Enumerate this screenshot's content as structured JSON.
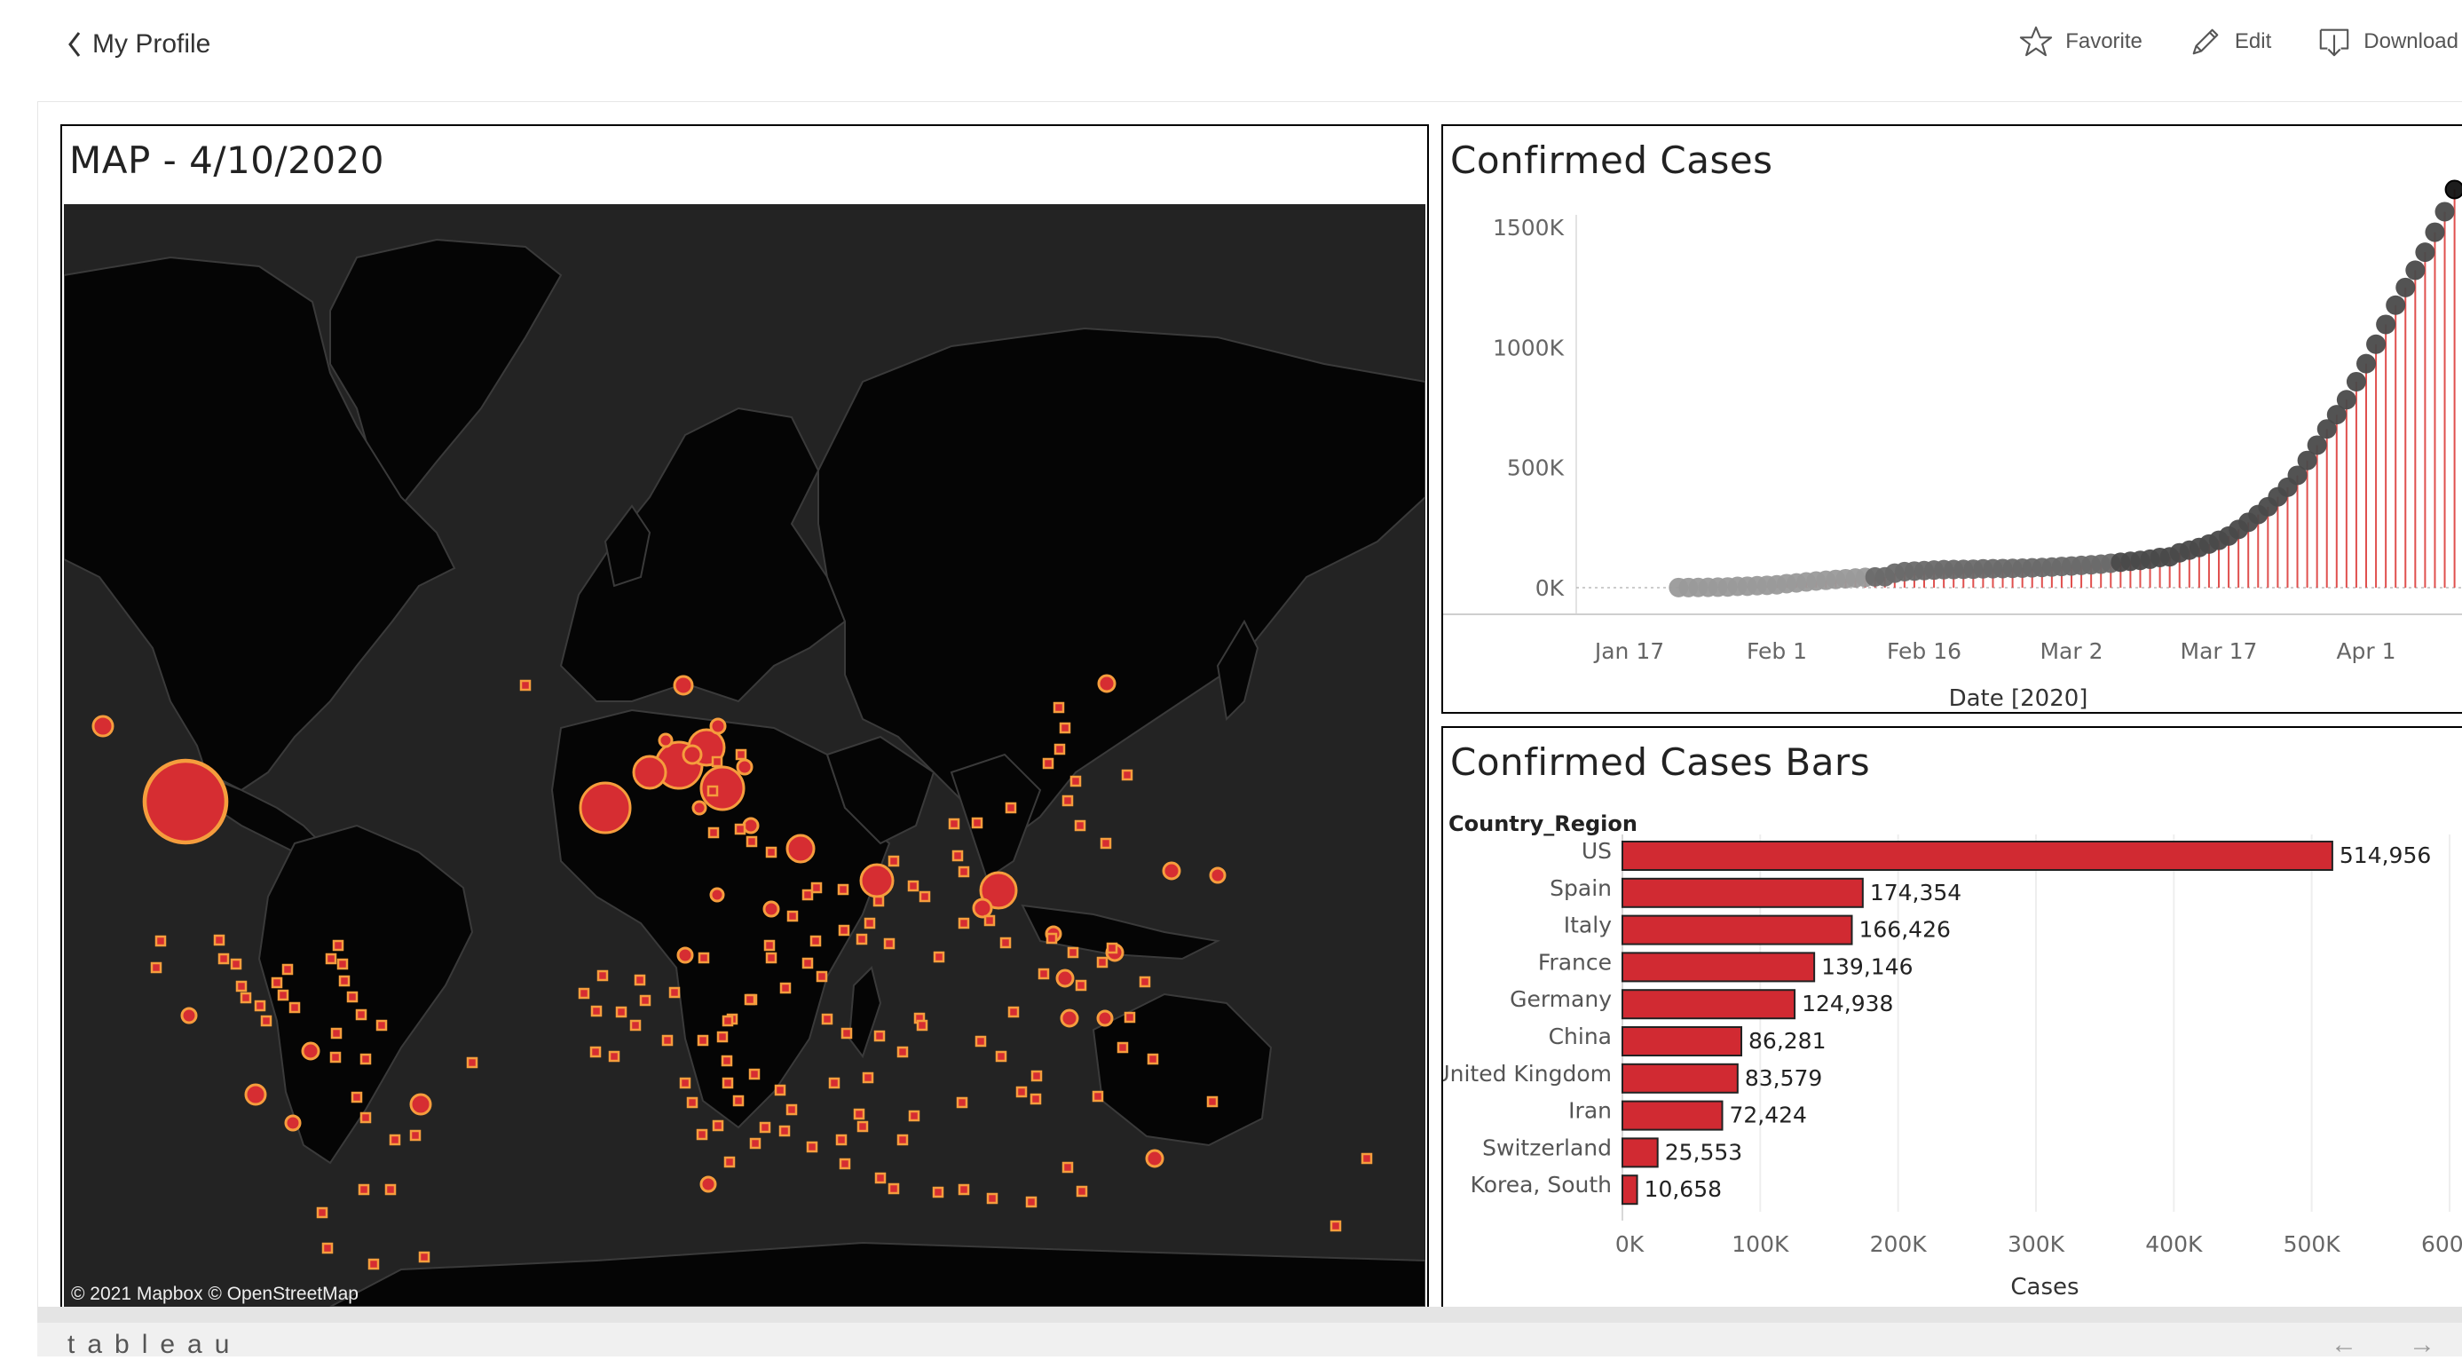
{
  "topbar": {
    "back_label": "My Profile",
    "actions": [
      {
        "icon": "star-icon",
        "label": "Favorite"
      },
      {
        "icon": "pencil-icon",
        "label": "Edit"
      },
      {
        "icon": "download-icon",
        "label": "Download"
      }
    ]
  },
  "map_panel": {
    "title": "MAP - 4/10/2020",
    "attribution": "© 2021 Mapbox  © OpenStreetMap",
    "land_color": "#000000",
    "ocean_color": "#232323",
    "marker_color": "#d62d32",
    "marker_outline": "#f59d3d"
  },
  "line_panel": {
    "title": "Confirmed Cases"
  },
  "bar_panel": {
    "title": "Confirmed Cases Bars"
  },
  "chart_data": [
    {
      "type": "scatter",
      "title": "Confirmed Cases",
      "xlabel": "Date [2020]",
      "ylabel": "",
      "x_ticks": [
        "Jan 17",
        "Feb 1",
        "Feb 16",
        "Mar 2",
        "Mar 17",
        "Apr 1"
      ],
      "y_ticks": [
        "0K",
        "500K",
        "1000K",
        "1500K"
      ],
      "ylim": [
        0,
        1750000
      ],
      "x_range": [
        "2020-01-22",
        "2020-04-10"
      ],
      "point_color": "#3a3a3a",
      "stem_color": "#e0504e",
      "series": [
        {
          "x_start": "2020-01-22",
          "x_step_days": 1,
          "values": [
            555,
            654,
            941,
            1434,
            2118,
            2927,
            5578,
            6166,
            8234,
            9927,
            12038,
            16787,
            19881,
            23892,
            27635,
            30794,
            34391,
            37120,
            40150,
            42762,
            44802,
            45221,
            60368,
            66885,
            69030,
            71224,
            73258,
            75136,
            75639,
            76197,
            76819,
            78572,
            78958,
            79561,
            80406,
            81388,
            82746,
            84112,
            86011,
            88369,
            90306,
            92840,
            95120,
            98016,
            101800,
            105836,
            109835,
            113591,
            118620,
            125875,
            128352,
            145205,
            156101,
            167454,
            181574,
            197102,
            214821,
            242570,
            272208,
            304507,
            336953,
            378231,
            418041,
            467653,
            529591,
            593291,
            660706,
            720117,
            782365,
            857487,
            932605,
            1013466,
            1095917,
            1176060,
            1249754,
            1321481,
            1396476,
            1479804,
            1565278,
            1657526
          ]
        }
      ]
    },
    {
      "type": "bar",
      "title": "Confirmed Cases Bars",
      "category_header": "Country_Region",
      "xlabel": "Cases",
      "x_ticks": [
        "0K",
        "100K",
        "200K",
        "300K",
        "400K",
        "500K",
        "600K"
      ],
      "xlim": [
        0,
        600000
      ],
      "bar_color": "#d12a32",
      "categories": [
        "US",
        "Spain",
        "Italy",
        "France",
        "Germany",
        "China",
        "United Kingdom",
        "Iran",
        "Switzerland",
        "Korea, South"
      ],
      "values": [
        514956,
        174354,
        166426,
        139146,
        124938,
        86281,
        83579,
        72424,
        25553,
        10658
      ],
      "value_labels": [
        "514,956",
        "174,354",
        "166,426",
        "139,146",
        "124,938",
        "86,281",
        "83,579",
        "72,424",
        "25,553",
        "10,658"
      ]
    }
  ],
  "footer": {
    "logo": "tableau",
    "prev_icon": "arrow-left-icon",
    "next_icon": "arrow-right-icon"
  }
}
